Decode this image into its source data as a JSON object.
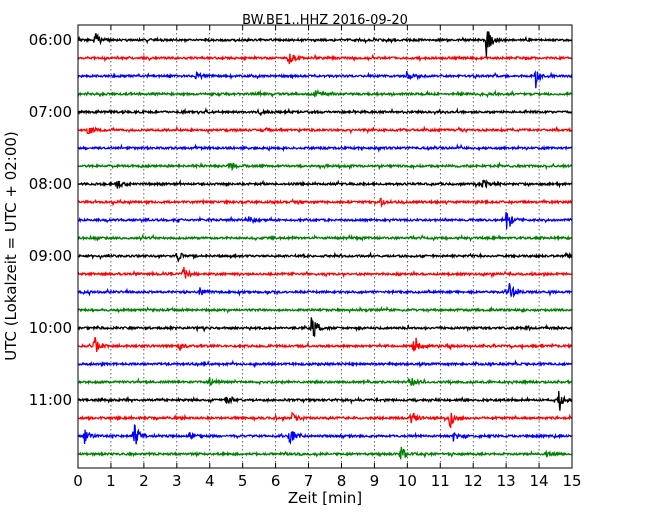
{
  "chart_data": {
    "type": "line",
    "title": "BW.BE1..HHZ 2016-09-20",
    "xlabel": "Zeit  [min]",
    "ylabel": "UTC (Lokalzeit = UTC + 02:00)",
    "xlim": [
      0,
      15
    ],
    "x_ticks": [
      "0",
      "1",
      "2",
      "3",
      "4",
      "5",
      "6",
      "7",
      "8",
      "9",
      "10",
      "11",
      "12",
      "13",
      "14",
      "15"
    ],
    "y_tick_labels": [
      "06:00",
      "07:00",
      "08:00",
      "09:00",
      "10:00",
      "11:00"
    ],
    "vertical_grid": "dotted",
    "trace_colors": [
      "#000000",
      "#ff0000",
      "#0000ff",
      "#008000"
    ],
    "traces": [
      {
        "start": "06:00",
        "events": [
          {
            "t": 0.5,
            "a": 1.0
          },
          {
            "t": 12.4,
            "a": 1.6
          }
        ]
      },
      {
        "start": "06:15",
        "events": [
          {
            "t": 6.4,
            "a": 0.9
          }
        ]
      },
      {
        "start": "06:30",
        "events": [
          {
            "t": 3.6,
            "a": 0.5
          },
          {
            "t": 10.0,
            "a": 0.6
          },
          {
            "t": 13.9,
            "a": 1.2
          }
        ]
      },
      {
        "start": "06:45",
        "events": [
          {
            "t": 7.2,
            "a": 0.5
          }
        ]
      },
      {
        "start": "07:00",
        "events": [
          {
            "t": 5.5,
            "a": 0.4
          }
        ]
      },
      {
        "start": "07:15",
        "events": [
          {
            "t": 0.3,
            "a": 0.6
          },
          {
            "t": 5.6,
            "a": 0.4
          }
        ]
      },
      {
        "start": "07:30",
        "events": []
      },
      {
        "start": "07:45",
        "events": [
          {
            "t": 4.6,
            "a": 0.5
          }
        ]
      },
      {
        "start": "08:00",
        "events": [
          {
            "t": 1.2,
            "a": 0.4
          },
          {
            "t": 12.3,
            "a": 0.6
          }
        ]
      },
      {
        "start": "08:15",
        "events": [
          {
            "t": 9.2,
            "a": 0.4
          }
        ]
      },
      {
        "start": "08:30",
        "events": [
          {
            "t": 5.2,
            "a": 0.4
          },
          {
            "t": 13.0,
            "a": 1.5
          }
        ]
      },
      {
        "start": "08:45",
        "events": []
      },
      {
        "start": "09:00",
        "events": [
          {
            "t": 3.0,
            "a": 0.6
          },
          {
            "t": 14.8,
            "a": 0.4
          }
        ]
      },
      {
        "start": "09:15",
        "events": [
          {
            "t": 3.2,
            "a": 0.7
          }
        ]
      },
      {
        "start": "09:30",
        "events": [
          {
            "t": 3.7,
            "a": 0.4
          },
          {
            "t": 13.1,
            "a": 0.9
          }
        ]
      },
      {
        "start": "09:45",
        "events": []
      },
      {
        "start": "10:00",
        "events": [
          {
            "t": 7.1,
            "a": 1.7
          }
        ]
      },
      {
        "start": "10:15",
        "events": [
          {
            "t": 0.5,
            "a": 1.0
          },
          {
            "t": 10.2,
            "a": 1.1
          },
          {
            "t": 3.1,
            "a": 0.4
          }
        ]
      },
      {
        "start": "10:30",
        "events": []
      },
      {
        "start": "10:45",
        "events": [
          {
            "t": 10.1,
            "a": 0.5
          },
          {
            "t": 4.0,
            "a": 0.4
          }
        ]
      },
      {
        "start": "11:00",
        "events": [
          {
            "t": 14.6,
            "a": 1.3
          },
          {
            "t": 4.5,
            "a": 0.4
          }
        ]
      },
      {
        "start": "11:15",
        "events": [
          {
            "t": 10.1,
            "a": 0.8
          },
          {
            "t": 11.3,
            "a": 1.0
          },
          {
            "t": 6.5,
            "a": 0.5
          }
        ]
      },
      {
        "start": "11:30",
        "events": [
          {
            "t": 0.2,
            "a": 0.8
          },
          {
            "t": 1.7,
            "a": 1.3
          },
          {
            "t": 6.4,
            "a": 1.2
          },
          {
            "t": 11.4,
            "a": 0.5
          },
          {
            "t": 3.4,
            "a": 0.4
          }
        ]
      },
      {
        "start": "11:45",
        "events": [
          {
            "t": 9.8,
            "a": 0.8
          },
          {
            "t": 14.2,
            "a": 0.3
          }
        ]
      }
    ]
  }
}
